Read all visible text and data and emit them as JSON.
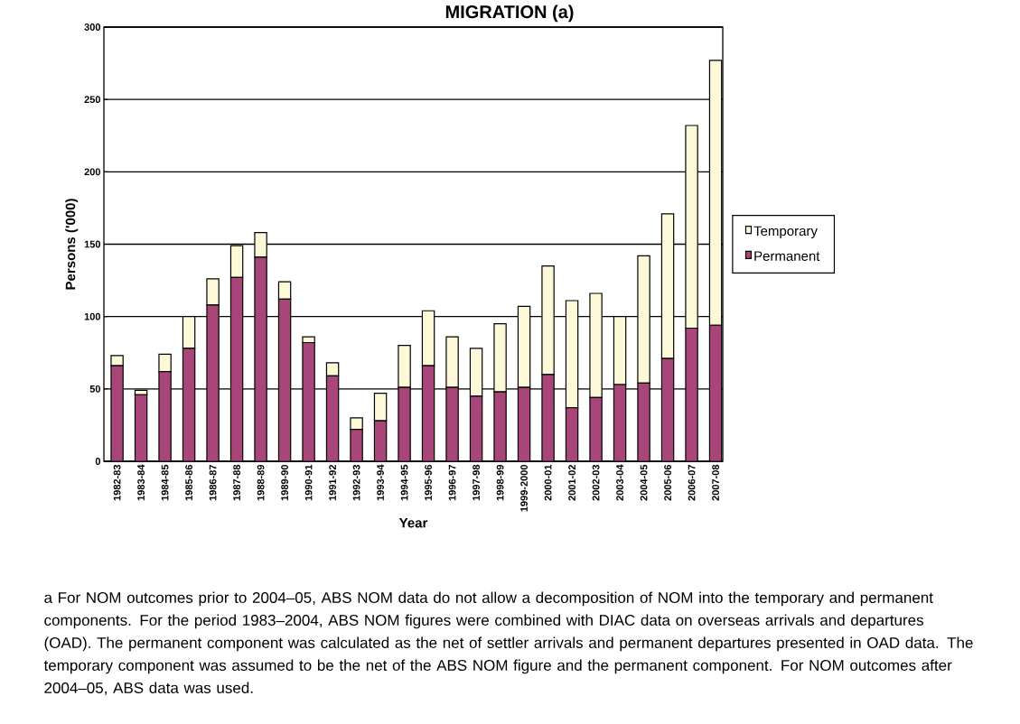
{
  "chart_data": {
    "type": "bar",
    "title": "MIGRATION (a)",
    "xlabel": "Year",
    "ylabel": "Persons ('000)",
    "categories": [
      "1982-83",
      "1983-84",
      "1984-85",
      "1985-86",
      "1986-87",
      "1987-88",
      "1988-89",
      "1989-90",
      "1990-91",
      "1991-92",
      "1992-93",
      "1993-94",
      "1994-95",
      "1995-96",
      "1996-97",
      "1997-98",
      "1998-99",
      "1999-2000",
      "2000-01",
      "2001-02",
      "2002-03",
      "2003-04",
      "2004-05",
      "2005-06",
      "2006-07",
      "2007-08"
    ],
    "series": [
      {
        "name": "Permanent",
        "color": "#a8467a",
        "values": [
          66,
          46,
          62,
          78,
          108,
          127,
          141,
          112,
          82,
          59,
          22,
          28,
          51,
          66,
          51,
          45,
          48,
          51,
          60,
          37,
          44,
          53,
          54,
          71,
          92,
          94
        ]
      },
      {
        "name": "Temporary",
        "color": "#fdf8d8",
        "values": [
          7,
          3,
          12,
          22,
          18,
          22,
          17,
          12,
          4,
          9,
          8,
          19,
          29,
          38,
          35,
          33,
          47,
          56,
          75,
          74,
          72,
          47,
          88,
          100,
          140,
          183
        ]
      }
    ],
    "stacked": true,
    "ylim": [
      0,
      300
    ],
    "yticks": [
      0,
      50,
      100,
      150,
      200,
      250,
      300
    ],
    "grid": "y",
    "legend": "right",
    "annotations": [
      "a For NOM outcomes prior to 2004–05, ABS NOM data do not allow a decomposition of NOM into the temporary and permanent components. For the period 1983–2004, ABS NOM figures were combined with DIAC data on overseas arrivals and departures (OAD). The permanent component was calculated as the net of settler arrivals and permanent departures presented in OAD data. The temporary component was assumed to be the net of the ABS NOM figure and the permanent component. For NOM outcomes after 2004–05, ABS data was used."
    ]
  }
}
